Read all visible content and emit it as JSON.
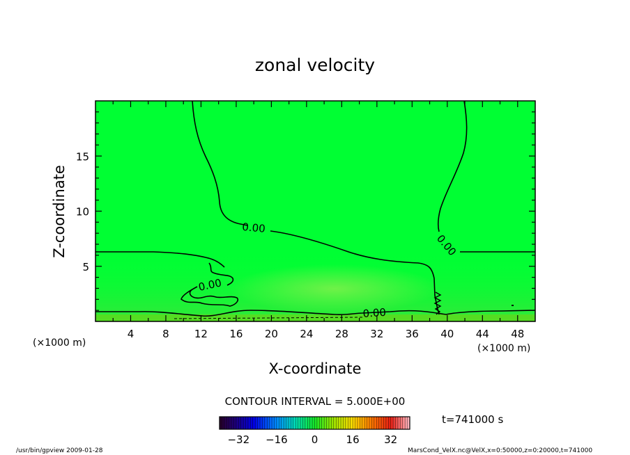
{
  "chart_data": {
    "type": "heatmap",
    "title": "zonal velocity",
    "xlabel": "X-coordinate",
    "ylabel": "Z-coordinate",
    "x_unit_left": "(×1000 m)",
    "x_unit_right": "(×1000 m)",
    "xlim": [
      0,
      50
    ],
    "ylim": [
      0,
      20
    ],
    "x_ticks": [
      4,
      8,
      12,
      16,
      20,
      24,
      28,
      32,
      36,
      40,
      44,
      48
    ],
    "y_ticks": [
      5,
      10,
      15
    ],
    "field_colors": {
      "background": "#00ff33",
      "near_surface": "#33ee33",
      "warm_patch": "#66f044",
      "surface_band": "#55dd22"
    },
    "contour_label": "0.00",
    "contour_level": 0.0,
    "contour_interval_text": "CONTOUR INTERVAL = 5.000E+00",
    "time_text": "t=741000 s",
    "colorbar": {
      "range": [
        -40,
        40
      ],
      "tick_values": [
        -32,
        -16,
        0,
        16,
        32
      ],
      "tick_labels": [
        "−32",
        "−16",
        "0",
        "16",
        "32"
      ]
    },
    "footer_left": "/usr/bin/gpview   2009-01-28",
    "footer_right": "MarsCond_VelX.nc@VelX,x=0:50000,z=0:20000,t=741000"
  }
}
